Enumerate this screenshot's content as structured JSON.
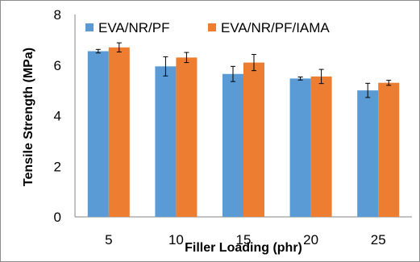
{
  "chart_data": {
    "type": "bar",
    "title": "",
    "xlabel": "Filler Loading (phr)",
    "ylabel": "Tensile Strength (MPa)",
    "categories": [
      "5",
      "10",
      "15",
      "20",
      "25"
    ],
    "ylim": [
      0,
      8
    ],
    "yticks": [
      "0",
      "2",
      "4",
      "6",
      "8"
    ],
    "grid": false,
    "legend_position": "top",
    "series": [
      {
        "name": "EVA/NR/PF",
        "color": "#5b9bd5",
        "values": [
          6.55,
          5.95,
          5.65,
          5.47,
          5.0
        ],
        "errors": [
          0.07,
          0.38,
          0.3,
          0.06,
          0.28
        ]
      },
      {
        "name": "EVA/NR/PF/IAMA",
        "color": "#ed7d31",
        "values": [
          6.7,
          6.3,
          6.1,
          5.55,
          5.3
        ],
        "errors": [
          0.18,
          0.2,
          0.32,
          0.28,
          0.1
        ]
      }
    ]
  }
}
